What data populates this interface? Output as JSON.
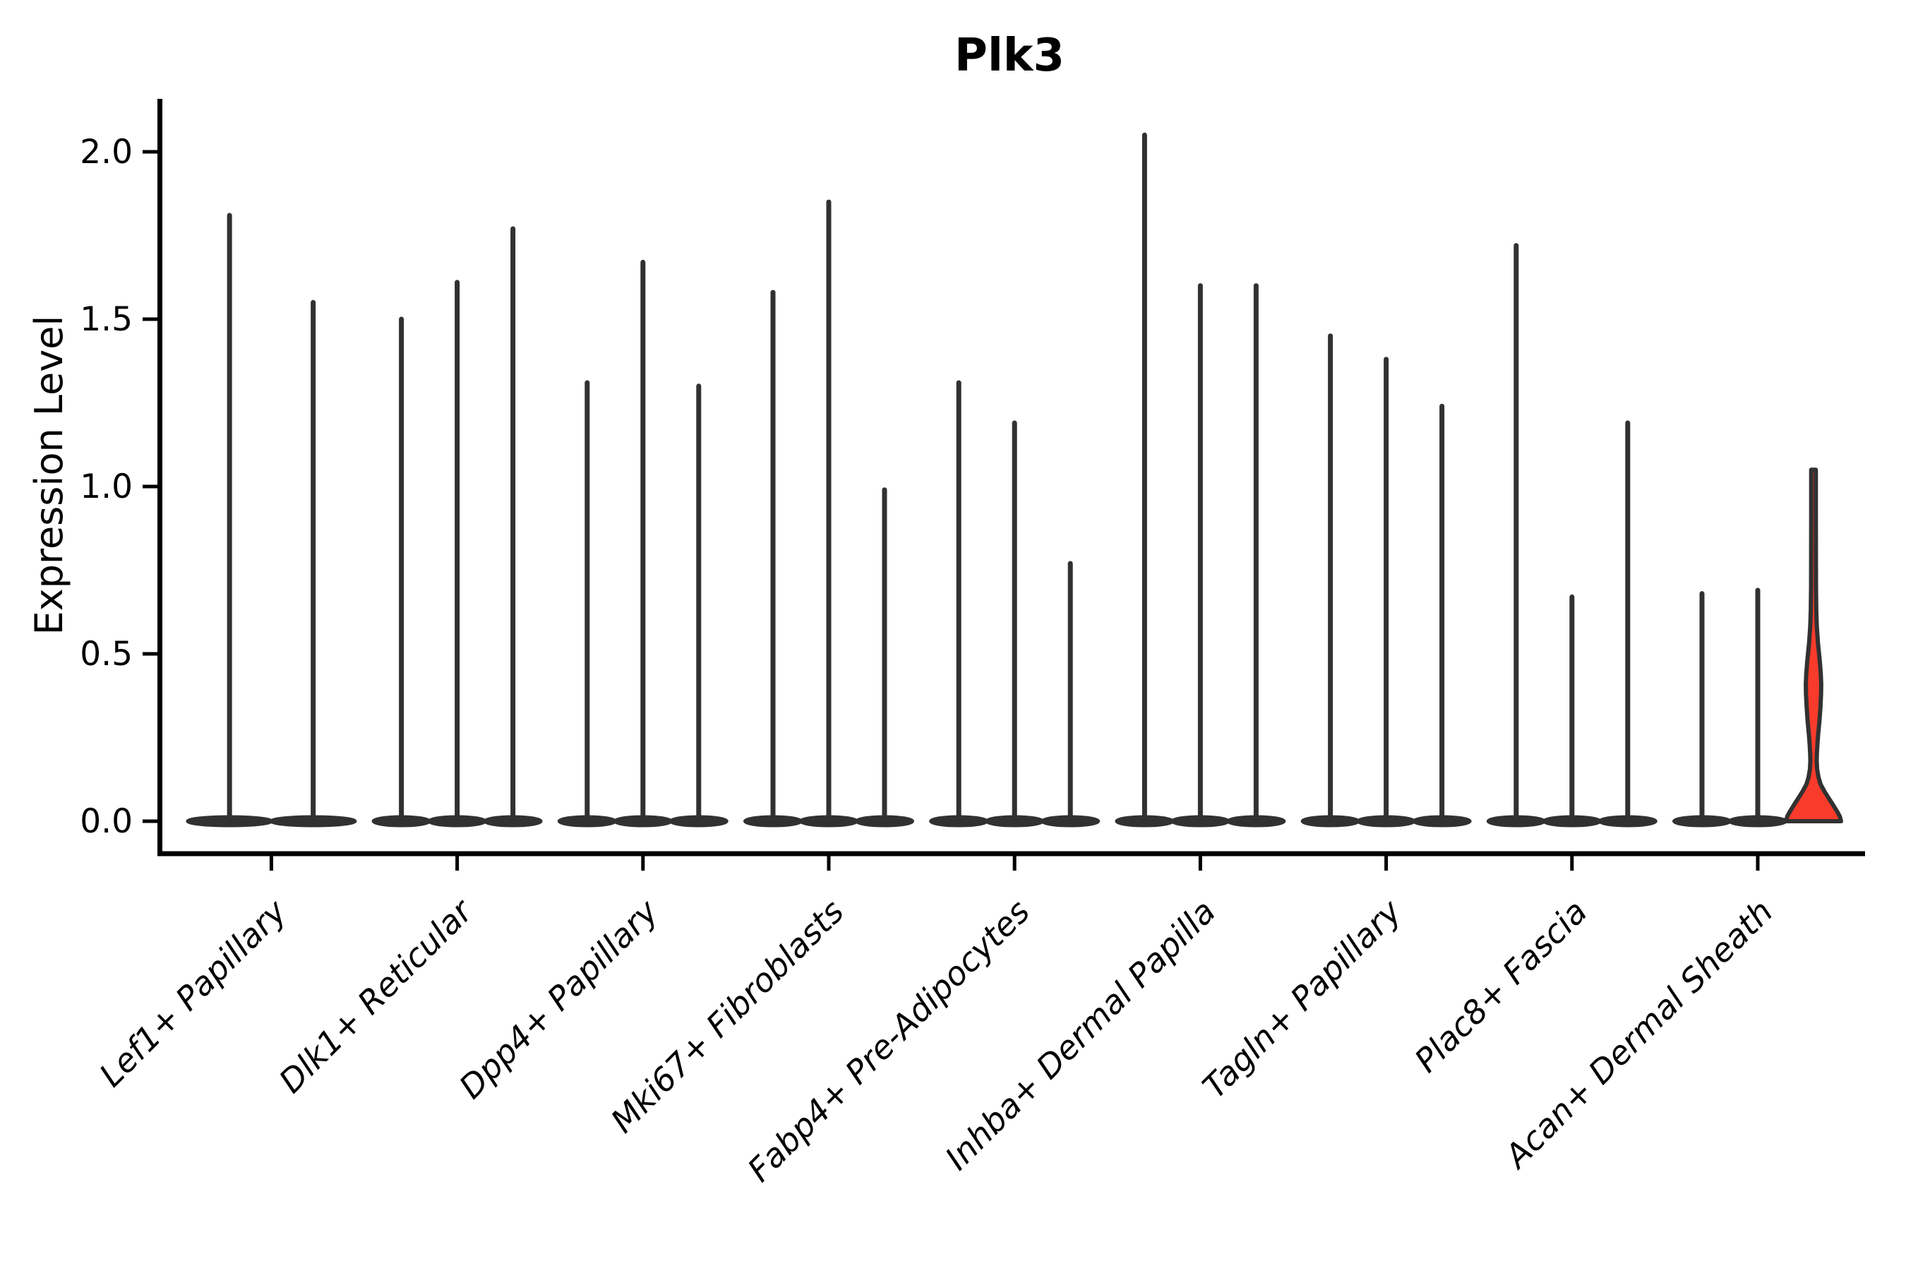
{
  "chart_data": {
    "type": "violin",
    "title": "Plk3",
    "xlabel": "",
    "ylabel": "Expression Level",
    "ylim": [
      0,
      2.15
    ],
    "yticks": [
      {
        "value": 0.0,
        "label": "0.0"
      },
      {
        "value": 0.5,
        "label": "0.5"
      },
      {
        "value": 1.0,
        "label": "1.0"
      },
      {
        "value": 1.5,
        "label": "1.5"
      },
      {
        "value": 2.0,
        "label": "2.0"
      }
    ],
    "grid": false,
    "legend": "none",
    "note": "Grouped violin plot; each category holds 2-3 spike-like violins (max expression shown as thin spike over a flat base at 0). One violin in the last category is highlighted red with a visible density bulge.",
    "categories": [
      {
        "label": "Lef1+ Papillary",
        "violins": [
          {
            "max": 1.81
          },
          {
            "max": 1.55
          }
        ]
      },
      {
        "label": "Dlk1+ Reticular",
        "violins": [
          {
            "max": 1.5
          },
          {
            "max": 1.61
          },
          {
            "max": 1.77
          }
        ]
      },
      {
        "label": "Dpp4+ Papillary",
        "violins": [
          {
            "max": 1.31
          },
          {
            "max": 1.67
          },
          {
            "max": 1.3
          }
        ]
      },
      {
        "label": "Mki67+ Fibroblasts",
        "violins": [
          {
            "max": 1.58
          },
          {
            "max": 1.85
          },
          {
            "max": 0.99
          }
        ]
      },
      {
        "label": "Fabp4+ Pre-Adipocytes",
        "violins": [
          {
            "max": 1.31
          },
          {
            "max": 1.19
          },
          {
            "max": 0.77
          }
        ]
      },
      {
        "label": "Inhba+ Dermal Papilla",
        "violins": [
          {
            "max": 2.05
          },
          {
            "max": 1.6
          },
          {
            "max": 1.6
          }
        ]
      },
      {
        "label": "Tagln+ Papillary",
        "violins": [
          {
            "max": 1.45
          },
          {
            "max": 1.38
          },
          {
            "max": 1.24
          }
        ]
      },
      {
        "label": "Plac8+ Fascia",
        "violins": [
          {
            "max": 1.72
          },
          {
            "max": 0.67
          },
          {
            "max": 1.19
          }
        ]
      },
      {
        "label": "Acan+ Dermal Sheath",
        "violins": [
          {
            "max": 0.68
          },
          {
            "max": 0.69
          },
          {
            "max": 1.05,
            "highlighted": true,
            "profile": [
              [
                1.05,
                0.085
              ],
              [
                0.92,
                0.085
              ],
              [
                0.8,
                0.086
              ],
              [
                0.7,
                0.09
              ],
              [
                0.63,
                0.1
              ],
              [
                0.58,
                0.12
              ],
              [
                0.53,
                0.165
              ],
              [
                0.48,
                0.225
              ],
              [
                0.44,
                0.265
              ],
              [
                0.41,
                0.28
              ],
              [
                0.38,
                0.275
              ],
              [
                0.34,
                0.25
              ],
              [
                0.3,
                0.215
              ],
              [
                0.26,
                0.17
              ],
              [
                0.23,
                0.14
              ],
              [
                0.2,
                0.12
              ],
              [
                0.18,
                0.115
              ],
              [
                0.155,
                0.13
              ],
              [
                0.13,
                0.185
              ],
              [
                0.11,
                0.26
              ],
              [
                0.09,
                0.39
              ],
              [
                0.07,
                0.54
              ],
              [
                0.05,
                0.7
              ],
              [
                0.03,
                0.85
              ],
              [
                0.015,
                0.95
              ],
              [
                0.0,
                1.0
              ]
            ]
          }
        ]
      }
    ],
    "colors": {
      "violin_stroke": "#313131",
      "violin_base_fill": "#313131",
      "highlight_fill": "#f93b2b",
      "axis": "#000000",
      "background": "#ffffff"
    }
  }
}
